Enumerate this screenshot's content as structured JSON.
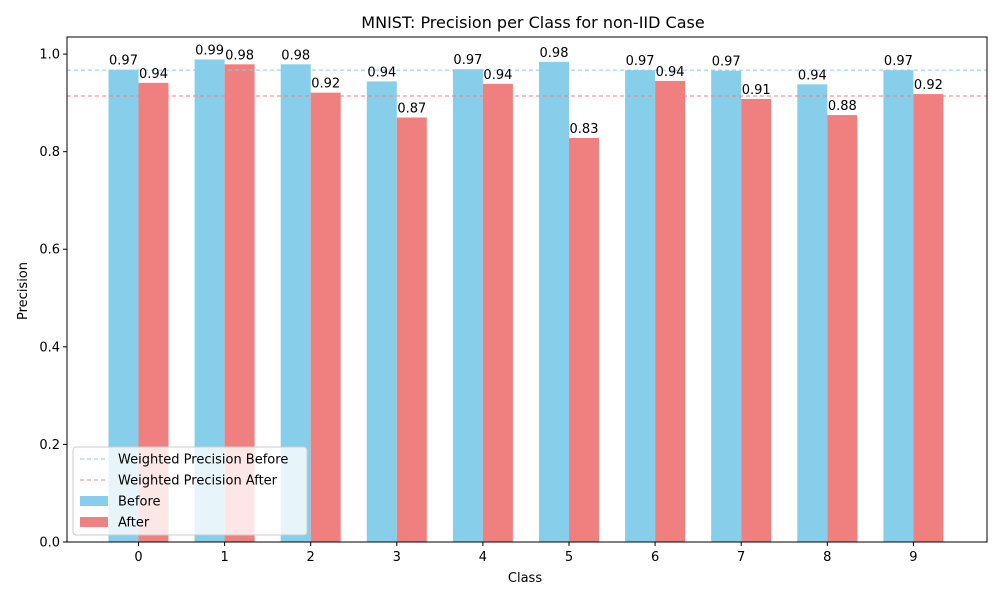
{
  "chart_data": {
    "type": "bar",
    "title": "MNIST: Precision per Class for non-IID Case",
    "xlabel": "Class",
    "ylabel": "Precision",
    "ylim": [
      0,
      1.035
    ],
    "yticks": [
      "0.0",
      "0.2",
      "0.4",
      "0.6",
      "0.8",
      "1.0"
    ],
    "categories": [
      "0",
      "1",
      "2",
      "3",
      "4",
      "5",
      "6",
      "7",
      "8",
      "9"
    ],
    "series": [
      {
        "name": "Before",
        "color": "#87CEEB",
        "values": [
          0.968,
          0.989,
          0.979,
          0.944,
          0.969,
          0.984,
          0.967,
          0.966,
          0.938,
          0.967
        ],
        "labels": [
          "0.97",
          "0.99",
          "0.98",
          "0.94",
          "0.97",
          "0.98",
          "0.97",
          "0.97",
          "0.94",
          "0.97"
        ]
      },
      {
        "name": "After",
        "color": "#F08080",
        "values": [
          0.941,
          0.979,
          0.921,
          0.87,
          0.939,
          0.828,
          0.945,
          0.908,
          0.875,
          0.918
        ],
        "labels": [
          "0.94",
          "0.98",
          "0.92",
          "0.87",
          "0.94",
          "0.83",
          "0.94",
          "0.91",
          "0.88",
          "0.92"
        ]
      }
    ],
    "reference_lines": [
      {
        "name": "Weighted Precision Before",
        "value": 0.967,
        "color": "#87CEEB",
        "style": "dashed"
      },
      {
        "name": "Weighted Precision After",
        "value": 0.914,
        "color": "#F08080",
        "style": "dashed"
      }
    ],
    "legend": {
      "placement": "lower-left",
      "entries": [
        "Weighted Precision Before",
        "Weighted Precision After",
        "Before",
        "After"
      ]
    },
    "grid": false
  }
}
